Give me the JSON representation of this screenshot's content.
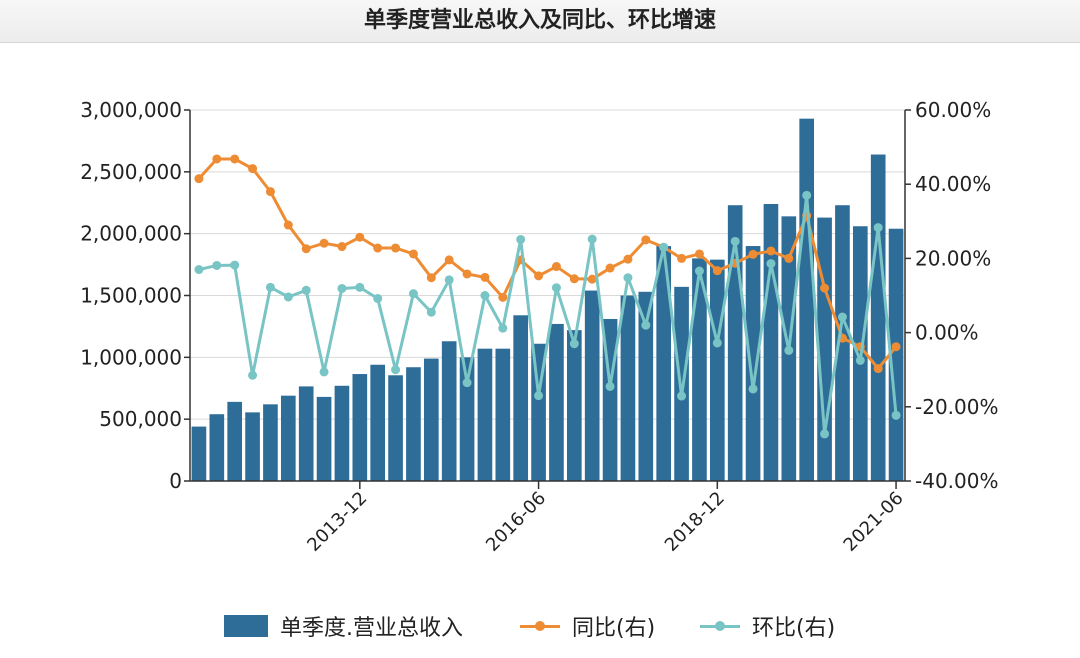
{
  "title": "单季度营业总收入及同比、环比增速",
  "colors": {
    "bar": "#2f6d99",
    "yoy": "#ee8c34",
    "qoq": "#79c4c4"
  },
  "legend": {
    "bar_label": "单季度.营业总收入",
    "yoy_label": "同比(右)",
    "qoq_label": "环比(右)"
  },
  "chart_data": {
    "type": "bar",
    "y_left": {
      "lim": [
        0,
        3000000
      ],
      "ticks": [
        "3,000,000",
        "2,500,000",
        "2,000,000",
        "1,500,000",
        "1,000,000",
        "500,000",
        "0"
      ]
    },
    "y_right": {
      "lim": [
        -40,
        60
      ],
      "ticks": [
        "60.00%",
        "40.00%",
        "20.00%",
        "0.00%",
        "-20.00%",
        "-40.00%"
      ]
    },
    "x_tick_labels": [
      {
        "label": "2013-12",
        "index": 9
      },
      {
        "label": "2016-06",
        "index": 19
      },
      {
        "label": "2018-12",
        "index": 29
      },
      {
        "label": "2021-06",
        "index": 39
      }
    ],
    "legend_position": "bottom",
    "grid": "horizontal",
    "series": [
      {
        "name": "单季度.营业总收入",
        "type": "bar",
        "axis": "left",
        "values": [
          440000,
          540000,
          640000,
          555000,
          620000,
          690000,
          765000,
          680000,
          770000,
          865000,
          940000,
          855000,
          920000,
          990000,
          1130000,
          1000000,
          1070000,
          1070000,
          1340000,
          1110000,
          1270000,
          1220000,
          1540000,
          1310000,
          1500000,
          1530000,
          1900000,
          1570000,
          1800000,
          1790000,
          2230000,
          1900000,
          2240000,
          2140000,
          2930000,
          2130000,
          2230000,
          2060000,
          2640000,
          2040000
        ]
      },
      {
        "name": "同比(右)",
        "type": "line",
        "axis": "right",
        "values": [
          41.5,
          46.8,
          46.8,
          44.2,
          38.0,
          29.0,
          22.6,
          24.1,
          23.2,
          25.7,
          22.8,
          22.8,
          21.2,
          14.8,
          19.6,
          15.8,
          14.9,
          9.5,
          19.6,
          15.3,
          17.8,
          14.5,
          14.4,
          17.4,
          19.8,
          25.0,
          23.0,
          20.0,
          21.2,
          16.7,
          18.7,
          21.1,
          22.0,
          20.0,
          31.5,
          12.0,
          -1.5,
          -3.8,
          -9.7,
          -3.8
        ]
      },
      {
        "name": "环比(右)",
        "type": "line",
        "axis": "right",
        "values": [
          17.0,
          18.1,
          18.2,
          -11.5,
          12.2,
          9.6,
          11.4,
          -10.6,
          11.9,
          12.2,
          9.2,
          -10.0,
          10.5,
          5.5,
          14.2,
          -13.5,
          10.0,
          1.2,
          25.1,
          -17.0,
          12.1,
          -3.0,
          25.2,
          -14.5,
          14.8,
          2.0,
          23.0,
          -17.1,
          16.6,
          -2.8,
          24.6,
          -15.2,
          18.6,
          -4.8,
          37.0,
          -27.3,
          4.2,
          -7.5,
          28.3,
          -22.3
        ]
      }
    ]
  }
}
